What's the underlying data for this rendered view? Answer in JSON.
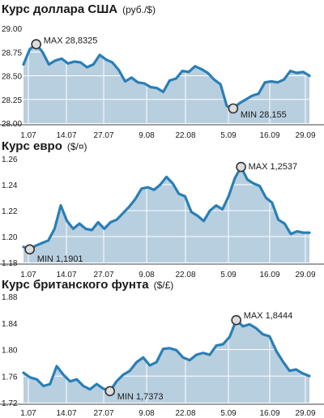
{
  "colors": {
    "line": "#2a7fb5",
    "fill": "#b8cfe0",
    "grid": "#ffffff",
    "marker_fill": "#dddddd",
    "marker_stroke": "#333333",
    "text": "#1a1a1a"
  },
  "chart_data": [
    {
      "type": "area",
      "title": "Курс доллара США",
      "unit": "(руб./$)",
      "x_tick_labels": [
        "1.07",
        "14.07",
        "27.07",
        "9.08",
        "22.08",
        "5.09",
        "16.09",
        "29.09"
      ],
      "y_tick_labels": [
        "29.00",
        "28.75",
        "28.50",
        "28.25",
        "28.00"
      ],
      "ylim": [
        28.0,
        29.0
      ],
      "grid": true,
      "values": [
        28.62,
        28.78,
        28.8325,
        28.75,
        28.62,
        28.66,
        28.68,
        28.63,
        28.65,
        28.64,
        28.59,
        28.62,
        28.72,
        28.67,
        28.64,
        28.56,
        28.44,
        28.48,
        28.43,
        28.42,
        28.38,
        28.37,
        28.33,
        28.45,
        28.47,
        28.55,
        28.54,
        28.6,
        28.57,
        28.53,
        28.46,
        28.41,
        28.18,
        28.155,
        28.21,
        28.25,
        28.29,
        28.31,
        28.43,
        28.44,
        28.43,
        28.46,
        28.55,
        28.53,
        28.54,
        28.5
      ],
      "annotations": [
        {
          "label": "MAX 28,8325",
          "index": 2,
          "value": 28.8325
        },
        {
          "label": "MIN 28,155",
          "index": 33,
          "value": 28.155
        }
      ]
    },
    {
      "type": "area",
      "title": "Курс евро",
      "unit": "($/¤)",
      "x_tick_labels": [
        "1.07",
        "14.07",
        "27.07",
        "9.08",
        "22.08",
        "5.09",
        "16.09",
        "29.09"
      ],
      "y_tick_labels": [
        "1.26",
        "1.24",
        "1.22",
        "1.20",
        "1.18"
      ],
      "ylim": [
        1.18,
        1.26
      ],
      "grid": true,
      "values": [
        1.192,
        1.1901,
        1.193,
        1.195,
        1.197,
        1.206,
        1.224,
        1.212,
        1.206,
        1.21,
        1.206,
        1.205,
        1.211,
        1.206,
        1.211,
        1.213,
        1.218,
        1.223,
        1.229,
        1.237,
        1.238,
        1.236,
        1.24,
        1.246,
        1.241,
        1.233,
        1.231,
        1.219,
        1.216,
        1.212,
        1.22,
        1.224,
        1.221,
        1.231,
        1.245,
        1.2537,
        1.244,
        1.241,
        1.239,
        1.23,
        1.226,
        1.213,
        1.21,
        1.202,
        1.204,
        1.203,
        1.203
      ],
      "annotations": [
        {
          "label": "MAX 1,2537",
          "index": 35,
          "value": 1.2537
        },
        {
          "label": "MIN 1,1901",
          "index": 1,
          "value": 1.1901
        }
      ]
    },
    {
      "type": "area",
      "title": "Курс британского фунта",
      "unit": "($/£)",
      "x_tick_labels": [
        "1.07",
        "14.07",
        "27.07",
        "9.08",
        "22.08",
        "5.09",
        "16.09",
        "29.09"
      ],
      "y_tick_labels": [
        "1.88",
        "1.84",
        "1.80",
        "1.76",
        "1.72"
      ],
      "ylim": [
        1.72,
        1.88
      ],
      "grid": true,
      "values": [
        1.765,
        1.758,
        1.755,
        1.745,
        1.748,
        1.775,
        1.762,
        1.752,
        1.755,
        1.745,
        1.74,
        1.748,
        1.741,
        1.7373,
        1.752,
        1.762,
        1.768,
        1.781,
        1.788,
        1.776,
        1.781,
        1.801,
        1.802,
        1.799,
        1.788,
        1.784,
        1.792,
        1.795,
        1.792,
        1.806,
        1.808,
        1.819,
        1.8444,
        1.835,
        1.838,
        1.832,
        1.823,
        1.82,
        1.798,
        1.782,
        1.768,
        1.77,
        1.764,
        1.76
      ],
      "annotations": [
        {
          "label": "MAX 1,8444",
          "index": 32,
          "value": 1.8444
        },
        {
          "label": "MIN 1,7373",
          "index": 13,
          "value": 1.7373
        }
      ]
    }
  ]
}
